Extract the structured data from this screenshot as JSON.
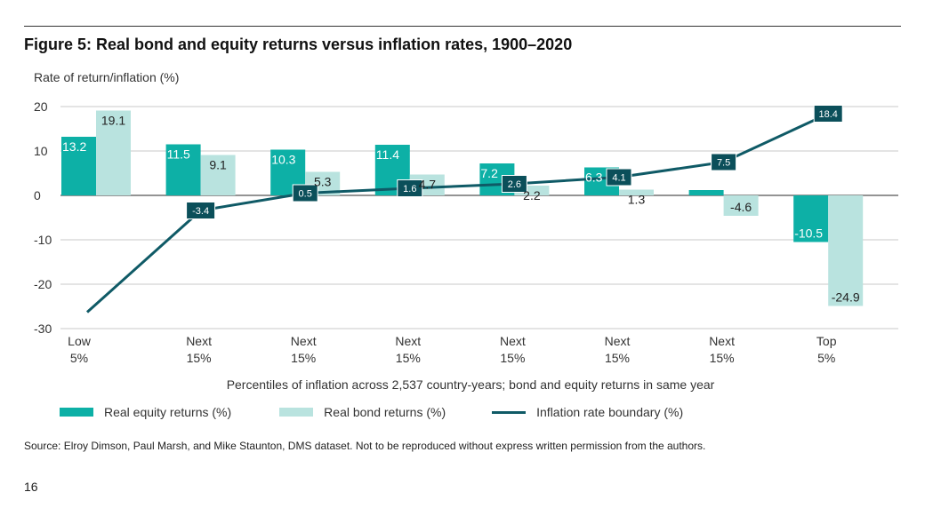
{
  "figure": {
    "title": "Figure 5: Real bond and equity returns versus inflation rates, 1900–2020",
    "source": "Source: Elroy Dimson, Paul Marsh, and Mike Staunton, DMS dataset. Not to be reproduced without express written permission from the authors.",
    "page_number": "16"
  },
  "chart_data": {
    "type": "bar",
    "ylabel": "Rate of return/inflation (%)",
    "xlabel": "Percentiles of inflation across 2,537 country-years; bond and equity returns in same year",
    "ylim": [
      -30,
      20
    ],
    "yticks": [
      20,
      10,
      0,
      -10,
      -20,
      -30
    ],
    "grid": true,
    "legend_position": "bottom",
    "categories": [
      [
        "Low",
        "5%"
      ],
      [
        "Next",
        "15%"
      ],
      [
        "Next",
        "15%"
      ],
      [
        "Next",
        "15%"
      ],
      [
        "Next",
        "15%"
      ],
      [
        "Next",
        "15%"
      ],
      [
        "Next",
        "15%"
      ],
      [
        "Top",
        "5%"
      ]
    ],
    "series": [
      {
        "name": "Real equity returns (%)",
        "type": "bar",
        "color": "#0db0a6",
        "values": [
          13.2,
          11.5,
          10.3,
          11.4,
          7.2,
          6.3,
          1.2,
          -10.5
        ],
        "labels": [
          "13.2",
          "11.5",
          "10.3",
          "11.4",
          "7.2",
          "6.3",
          "",
          "-10.5"
        ]
      },
      {
        "name": "Real bond returns (%)",
        "type": "bar",
        "color": "#b9e3df",
        "values": [
          19.1,
          9.1,
          5.3,
          4.7,
          2.2,
          1.3,
          -4.6,
          -24.9
        ],
        "labels": [
          "19.1",
          "9.1",
          "5.3",
          "4.7",
          "2.2",
          "1.3",
          "-4.6",
          "-24.9"
        ]
      },
      {
        "name": "Inflation rate boundary (%)",
        "type": "line",
        "color": "#0f5a66",
        "x": [
          0.15,
          1,
          2,
          3,
          4,
          5,
          6,
          7
        ],
        "values": [
          -26.3,
          -3.4,
          0.5,
          1.6,
          2.6,
          4.1,
          7.5,
          18.4
        ],
        "labels": [
          "",
          "-3.4",
          "0.5",
          "1.6",
          "2.6",
          "4.1",
          "7.5",
          "18.4"
        ]
      }
    ]
  }
}
